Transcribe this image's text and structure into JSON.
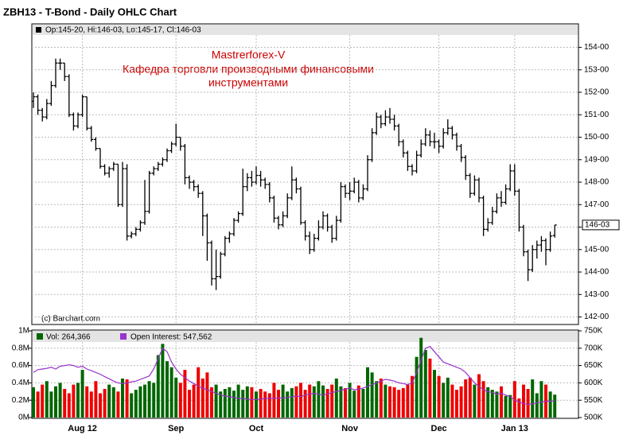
{
  "chart_data": {
    "type": "ohlc",
    "title": "ZBH13 - T-Bond - Daily OHLC Chart",
    "header": "Op:145-20, Hi:146-03, Lo:145-17, Cl:146-03",
    "annotation": [
      "Mastrerforex-V",
      "Кафедра торговли производными финансовыми",
      "инструментами"
    ],
    "watermark": "(c) Barchart.com",
    "grid": true,
    "categories": [
      null,
      null,
      null,
      null,
      null,
      null,
      null,
      null,
      null,
      null,
      null,
      "Aug 12",
      null,
      null,
      null,
      null,
      null,
      null,
      null,
      null,
      null,
      null,
      null,
      null,
      null,
      null,
      null,
      null,
      null,
      null,
      null,
      null,
      "Sep",
      null,
      null,
      null,
      null,
      null,
      null,
      null,
      null,
      null,
      null,
      null,
      null,
      null,
      null,
      null,
      null,
      null,
      "Oct",
      null,
      null,
      null,
      null,
      null,
      null,
      null,
      null,
      null,
      null,
      null,
      null,
      null,
      null,
      null,
      null,
      null,
      null,
      null,
      null,
      "Nov",
      null,
      null,
      null,
      null,
      null,
      null,
      null,
      null,
      null,
      null,
      null,
      null,
      null,
      null,
      null,
      null,
      null,
      null,
      null,
      "Dec",
      null,
      null,
      null,
      null,
      null,
      null,
      null,
      null,
      null,
      null,
      null,
      null,
      null,
      null,
      null,
      null,
      "Jan 13",
      null,
      null,
      null,
      null,
      null,
      null,
      null,
      null,
      null
    ],
    "ohlc": [
      [
        151.6,
        152.0,
        151.3,
        151.8
      ],
      [
        151.8,
        151.9,
        151.0,
        151.2
      ],
      [
        151.2,
        151.3,
        150.7,
        150.9
      ],
      [
        150.9,
        151.7,
        150.8,
        151.5
      ],
      [
        151.5,
        152.5,
        151.4,
        152.3
      ],
      [
        152.3,
        153.5,
        152.2,
        153.3
      ],
      [
        153.3,
        153.5,
        153.0,
        153.3
      ],
      [
        153.3,
        153.3,
        152.5,
        152.7
      ],
      [
        152.7,
        152.8,
        150.9,
        151.0
      ],
      [
        151.0,
        151.1,
        150.3,
        150.5
      ],
      [
        150.5,
        151.1,
        150.4,
        151.0
      ],
      [
        151.0,
        151.9,
        150.9,
        151.8
      ],
      [
        151.8,
        151.8,
        150.3,
        150.4
      ],
      [
        150.4,
        150.5,
        149.8,
        149.9
      ],
      [
        149.9,
        150.0,
        149.4,
        149.5
      ],
      [
        149.5,
        149.5,
        148.6,
        148.7
      ],
      [
        148.7,
        148.8,
        148.3,
        148.4
      ],
      [
        148.4,
        148.7,
        148.2,
        148.6
      ],
      [
        148.6,
        148.9,
        148.5,
        148.8
      ],
      [
        148.8,
        148.8,
        146.9,
        147.0
      ],
      [
        147.0,
        148.9,
        146.9,
        148.6
      ],
      [
        148.6,
        148.8,
        145.4,
        145.6
      ],
      [
        145.6,
        145.8,
        145.5,
        145.7
      ],
      [
        145.7,
        146.0,
        145.6,
        145.9
      ],
      [
        145.9,
        146.3,
        145.8,
        146.2
      ],
      [
        146.2,
        148.1,
        146.1,
        146.7
      ],
      [
        146.7,
        148.5,
        146.6,
        148.4
      ],
      [
        148.4,
        148.7,
        148.3,
        148.6
      ],
      [
        148.6,
        148.9,
        148.5,
        148.8
      ],
      [
        148.8,
        149.1,
        148.7,
        149.0
      ],
      [
        149.0,
        149.5,
        148.9,
        149.4
      ],
      [
        149.4,
        149.8,
        149.3,
        149.7
      ],
      [
        149.7,
        150.6,
        149.6,
        150.0
      ],
      [
        150.0,
        150.0,
        149.4,
        149.6
      ],
      [
        149.6,
        149.7,
        147.9,
        148.2
      ],
      [
        148.2,
        148.3,
        147.7,
        148.0
      ],
      [
        148.0,
        148.1,
        147.6,
        147.8
      ],
      [
        147.8,
        147.9,
        147.3,
        147.5
      ],
      [
        147.5,
        147.6,
        145.6,
        146.5
      ],
      [
        146.5,
        146.6,
        144.5,
        145.3
      ],
      [
        145.3,
        145.4,
        143.4,
        143.7
      ],
      [
        143.7,
        145.0,
        143.2,
        143.8
      ],
      [
        143.8,
        144.9,
        143.7,
        144.8
      ],
      [
        144.8,
        145.6,
        144.7,
        145.5
      ],
      [
        145.5,
        145.8,
        145.3,
        145.7
      ],
      [
        145.7,
        146.4,
        145.6,
        146.3
      ],
      [
        146.3,
        146.7,
        146.2,
        146.6
      ],
      [
        146.6,
        148.6,
        146.5,
        147.8
      ],
      [
        147.8,
        148.4,
        147.6,
        148.2
      ],
      [
        148.2,
        148.5,
        147.8,
        148.0
      ],
      [
        148.0,
        148.7,
        147.9,
        148.3
      ],
      [
        148.3,
        148.5,
        147.8,
        148.1
      ],
      [
        148.1,
        148.2,
        147.7,
        147.9
      ],
      [
        147.9,
        148.0,
        147.1,
        147.3
      ],
      [
        147.3,
        147.4,
        146.2,
        146.4
      ],
      [
        146.4,
        146.5,
        145.9,
        146.1
      ],
      [
        146.1,
        146.7,
        146.0,
        146.5
      ],
      [
        146.5,
        147.5,
        146.4,
        147.3
      ],
      [
        147.3,
        148.7,
        147.2,
        148.1
      ],
      [
        148.1,
        148.2,
        147.5,
        147.7
      ],
      [
        147.7,
        147.8,
        146.1,
        146.2
      ],
      [
        146.2,
        146.3,
        145.4,
        145.6
      ],
      [
        145.6,
        145.8,
        144.8,
        145.0
      ],
      [
        145.0,
        145.7,
        144.9,
        145.5
      ],
      [
        145.5,
        146.3,
        145.4,
        146.0
      ],
      [
        146.0,
        146.7,
        145.9,
        146.5
      ],
      [
        146.5,
        146.6,
        145.8,
        146.0
      ],
      [
        146.0,
        146.1,
        145.3,
        145.5
      ],
      [
        145.5,
        146.5,
        145.4,
        146.3
      ],
      [
        146.3,
        148.0,
        146.2,
        147.8
      ],
      [
        147.8,
        147.9,
        147.3,
        147.5
      ],
      [
        147.5,
        148.0,
        147.2,
        147.6
      ],
      [
        147.6,
        148.2,
        147.5,
        148.0
      ],
      [
        148.0,
        148.1,
        147.1,
        147.3
      ],
      [
        147.3,
        147.9,
        147.2,
        147.7
      ],
      [
        147.7,
        149.2,
        147.6,
        149.0
      ],
      [
        149.0,
        150.4,
        148.9,
        150.2
      ],
      [
        150.2,
        151.1,
        150.1,
        150.9
      ],
      [
        150.9,
        151.0,
        150.4,
        150.6
      ],
      [
        150.6,
        151.2,
        150.5,
        150.9
      ],
      [
        150.9,
        151.3,
        150.6,
        150.8
      ],
      [
        150.8,
        151.0,
        150.3,
        150.5
      ],
      [
        150.5,
        150.6,
        149.6,
        149.8
      ],
      [
        149.8,
        149.9,
        149.1,
        149.3
      ],
      [
        149.3,
        149.4,
        148.5,
        148.7
      ],
      [
        148.7,
        148.8,
        148.3,
        148.5
      ],
      [
        148.5,
        149.4,
        148.4,
        149.2
      ],
      [
        149.2,
        149.9,
        149.1,
        149.7
      ],
      [
        149.7,
        150.4,
        149.6,
        150.1
      ],
      [
        150.1,
        150.3,
        149.6,
        149.8
      ],
      [
        149.8,
        150.2,
        149.5,
        149.8
      ],
      [
        149.8,
        149.9,
        149.3,
        149.6
      ],
      [
        149.6,
        150.4,
        149.5,
        150.2
      ],
      [
        150.2,
        150.8,
        150.1,
        150.4
      ],
      [
        150.4,
        150.5,
        149.9,
        150.1
      ],
      [
        150.1,
        150.2,
        149.4,
        149.6
      ],
      [
        149.6,
        149.7,
        148.9,
        149.1
      ],
      [
        149.1,
        149.2,
        148.1,
        148.3
      ],
      [
        148.3,
        148.4,
        147.3,
        147.5
      ],
      [
        147.5,
        148.3,
        147.4,
        148.1
      ],
      [
        148.1,
        148.2,
        147.1,
        147.3
      ],
      [
        147.3,
        147.4,
        145.6,
        145.9
      ],
      [
        145.9,
        146.4,
        145.8,
        146.2
      ],
      [
        146.2,
        146.9,
        146.1,
        146.7
      ],
      [
        146.7,
        147.5,
        146.6,
        147.3
      ],
      [
        147.3,
        147.6,
        146.9,
        147.1
      ],
      [
        147.1,
        147.9,
        147.0,
        147.7
      ],
      [
        147.7,
        148.8,
        147.6,
        148.5
      ],
      [
        148.5,
        148.8,
        147.4,
        147.6
      ],
      [
        147.6,
        147.7,
        145.8,
        146.0
      ],
      [
        146.0,
        146.1,
        144.7,
        144.9
      ],
      [
        144.9,
        145.0,
        143.6,
        144.1
      ],
      [
        144.1,
        145.2,
        144.0,
        145.0
      ],
      [
        145.0,
        145.4,
        144.6,
        145.2
      ],
      [
        145.2,
        145.6,
        144.9,
        145.4
      ],
      [
        145.4,
        145.5,
        144.3,
        145.0
      ],
      [
        145.0,
        145.8,
        144.9,
        145.6
      ],
      [
        145.625,
        146.09375,
        145.53125,
        146.09375
      ]
    ],
    "ylim": [
      141.7,
      154.55
    ],
    "yticks": [
      {
        "value": 142,
        "label": "142-00"
      },
      {
        "value": 143,
        "label": "143-00"
      },
      {
        "value": 144,
        "label": "144-00"
      },
      {
        "value": 145,
        "label": "145-00"
      },
      {
        "value": 146,
        "label": "146-00"
      },
      {
        "value": 147,
        "label": "147-00"
      },
      {
        "value": 148,
        "label": "148-00"
      },
      {
        "value": 149,
        "label": "149-00"
      },
      {
        "value": 150,
        "label": "150-00"
      },
      {
        "value": 151,
        "label": "151-00"
      },
      {
        "value": 152,
        "label": "152-00"
      },
      {
        "value": 153,
        "label": "153-00"
      },
      {
        "value": 154,
        "label": "154-00"
      }
    ],
    "last_price": {
      "value": 146.09375,
      "label": "146-03"
    },
    "color": "#000000",
    "volume": {
      "name": "Vol: 264,366",
      "up_color": "#006600",
      "down_color": "#ee0000",
      "values": [
        0.35,
        0.3,
        0.38,
        0.42,
        0.3,
        0.36,
        0.4,
        0.33,
        0.28,
        0.38,
        0.4,
        0.55,
        0.36,
        0.3,
        0.42,
        0.28,
        0.33,
        0.38,
        0.35,
        0.3,
        0.45,
        0.44,
        0.28,
        0.32,
        0.36,
        0.38,
        0.42,
        0.4,
        0.72,
        0.85,
        0.65,
        0.58,
        0.46,
        0.4,
        0.55,
        0.32,
        0.38,
        0.58,
        0.45,
        0.52,
        0.35,
        0.38,
        0.3,
        0.33,
        0.35,
        0.31,
        0.38,
        0.32,
        0.36,
        0.35,
        0.3,
        0.33,
        0.3,
        0.28,
        0.4,
        0.32,
        0.38,
        0.3,
        0.34,
        0.36,
        0.4,
        0.32,
        0.38,
        0.36,
        0.42,
        0.37,
        0.33,
        0.38,
        0.45,
        0.36,
        0.34,
        0.4,
        0.31,
        0.37,
        0.33,
        0.58,
        0.52,
        0.42,
        0.45,
        0.38,
        0.36,
        0.35,
        0.32,
        0.34,
        0.38,
        0.48,
        0.7,
        0.92,
        0.78,
        0.68,
        0.55,
        0.48,
        0.4,
        0.46,
        0.38,
        0.32,
        0.36,
        0.44,
        0.46,
        0.38,
        0.5,
        0.42,
        0.35,
        0.32,
        0.3,
        0.36,
        0.25,
        0.26,
        0.42,
        0.22,
        0.38,
        0.33,
        0.44,
        0.28,
        0.42,
        0.38,
        0.3,
        0.264366
      ],
      "ylim": [
        0,
        1
      ],
      "yticks": [
        {
          "value": 0,
          "label": "0M"
        },
        {
          "value": 0.2,
          "label": "0.2M"
        },
        {
          "value": 0.4,
          "label": "0.4M"
        },
        {
          "value": 0.6,
          "label": "0.6M"
        },
        {
          "value": 0.8,
          "label": "0.8M"
        },
        {
          "value": 1,
          "label": "1M"
        }
      ]
    },
    "open_interest": {
      "name": "Open Interest: 547,562",
      "color": "#9933cc",
      "axis": "y2",
      "values": [
        630,
        638,
        640,
        642,
        645,
        640,
        648,
        650,
        652,
        650,
        645,
        648,
        640,
        635,
        630,
        625,
        618,
        612,
        605,
        600,
        598,
        600,
        603,
        605,
        610,
        615,
        620,
        640,
        670,
        700,
        690,
        660,
        640,
        625,
        615,
        605,
        598,
        590,
        585,
        580,
        575,
        570,
        565,
        562,
        560,
        558,
        555,
        555,
        553,
        552,
        552,
        553,
        555,
        556,
        555,
        557,
        556,
        558,
        560,
        562,
        560,
        565,
        568,
        570,
        567,
        565,
        568,
        572,
        575,
        578,
        582,
        585,
        580,
        582,
        585,
        590,
        595,
        600,
        605,
        610,
        608,
        605,
        600,
        598,
        595,
        600,
        630,
        665,
        700,
        705,
        690,
        675,
        660,
        655,
        650,
        645,
        640,
        630,
        615,
        600,
        590,
        580,
        575,
        572,
        568,
        570,
        565,
        560,
        550,
        545,
        540,
        538,
        540,
        542,
        545,
        546,
        548,
        547.562
      ],
      "y2lim": [
        500,
        750
      ],
      "y2ticks": [
        {
          "value": 500,
          "label": "500K"
        },
        {
          "value": 550,
          "label": "550K"
        },
        {
          "value": 600,
          "label": "600K"
        },
        {
          "value": 650,
          "label": "650K"
        },
        {
          "value": 700,
          "label": "700K"
        },
        {
          "value": 750,
          "label": "750K"
        }
      ]
    }
  }
}
